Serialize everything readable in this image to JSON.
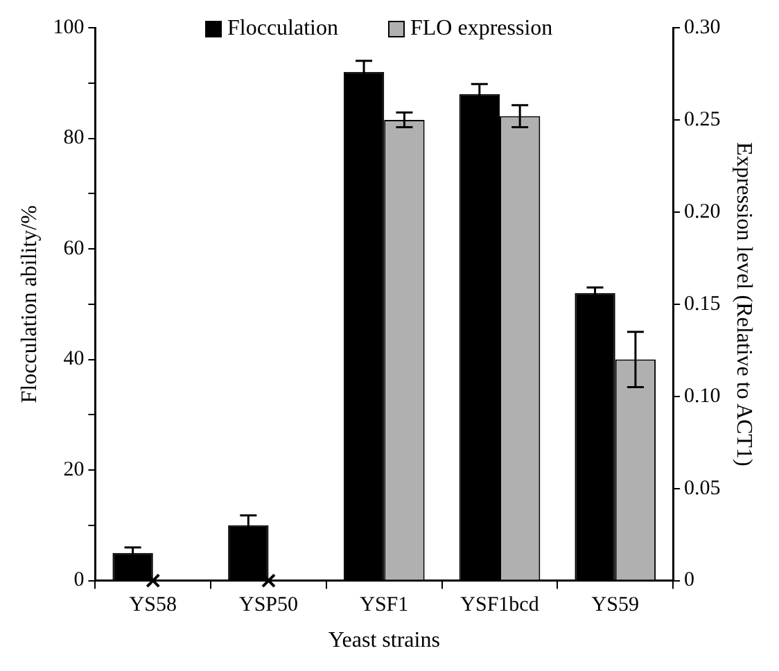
{
  "chart_data": {
    "type": "bar",
    "xlabel": "Yeast strains",
    "ylabel": "Flocculation ability/%",
    "y2label": "Expression level (Relative to ACT1)",
    "categories": [
      "YS58",
      "YSP50",
      "YSF1",
      "YSF1bcd",
      "YS59"
    ],
    "series": [
      {
        "name": "Flocculation",
        "color": "#000000",
        "values": [
          5,
          10,
          92,
          88,
          52
        ],
        "errors": [
          1,
          1.8,
          2,
          1.8,
          1
        ]
      },
      {
        "name": "FLO expression",
        "color": "#b0b0b0",
        "axis": "y2",
        "values": [
          null,
          null,
          0.25,
          0.252,
          0.12
        ],
        "errors": [
          null,
          null,
          0.004,
          0.006,
          0.015
        ]
      },
      {
        "type": "scatter",
        "color": "#000000",
        "axis": "y2",
        "marker": "cross",
        "x": [
          "YS58",
          "YSP50"
        ],
        "values": [
          0,
          0
        ]
      }
    ],
    "ylim": [
      0,
      100
    ],
    "yticks": [
      0,
      {
        "value": 10,
        "label": null
      },
      20,
      {
        "value": 30,
        "label": null
      },
      40,
      {
        "value": 50,
        "label": null
      },
      60,
      {
        "value": 70,
        "label": null
      },
      80,
      {
        "value": 90,
        "label": null
      },
      100
    ],
    "y2lim": [
      0,
      0.3
    ],
    "y2ticks": [
      0,
      0.05,
      {
        "value": 0.1,
        "label": "0.10"
      },
      0.15,
      {
        "value": 0.2,
        "label": "0.20"
      },
      0.25,
      {
        "value": 0.3,
        "label": "0.30"
      }
    ],
    "grid": false,
    "legend": "top"
  }
}
